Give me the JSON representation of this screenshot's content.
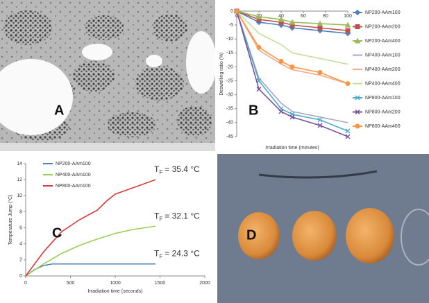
{
  "panels": {
    "a": {
      "label": "A"
    },
    "d": {
      "label": "D"
    }
  },
  "chart_data": [
    {
      "type": "line",
      "panel": "B",
      "x_axis_position": "top",
      "grid": false,
      "x_label": "Irradiation time (minutes)",
      "y_label": "Deswelling ratio (%)",
      "xlim": [
        0,
        100
      ],
      "xticks": [
        0,
        20,
        40,
        60,
        80,
        100
      ],
      "ylim": [
        -45,
        0
      ],
      "yticks": [
        0,
        -5,
        -10,
        -15,
        -20,
        -25,
        -30,
        -35,
        -40,
        -45
      ],
      "series": [
        {
          "name": "NP200-AAm100",
          "color": "#4f81bd",
          "marker": "diamond",
          "x": [
            0,
            20,
            40,
            50,
            75,
            100
          ],
          "values": [
            0,
            -4,
            -5,
            -6,
            -7,
            -8
          ]
        },
        {
          "name": "NP200-AAm200",
          "color": "#c0504d",
          "marker": "square",
          "x": [
            0,
            20,
            40,
            50,
            75,
            100
          ],
          "values": [
            0,
            -3,
            -4,
            -5,
            -6,
            -7
          ]
        },
        {
          "name": "NP200-AAm400",
          "color": "#9bbb59",
          "marker": "triangle",
          "x": [
            0,
            20,
            40,
            50,
            75,
            100
          ],
          "values": [
            0,
            -2,
            -3,
            -4,
            -4.5,
            -5
          ]
        },
        {
          "name": "NP400-AAm100",
          "color": "#a6a6c8",
          "marker": "none",
          "x": [
            0,
            20,
            40,
            50,
            75,
            100
          ],
          "values": [
            0,
            -24,
            -33,
            -36,
            -38,
            -40
          ]
        },
        {
          "name": "NP400-AAm200",
          "color": "#f2a98a",
          "marker": "none",
          "x": [
            0,
            20,
            40,
            50,
            75,
            100
          ],
          "values": [
            0,
            -14,
            -19,
            -21,
            -23,
            -26
          ]
        },
        {
          "name": "NP400-AAm400",
          "color": "#c3e09a",
          "marker": "none",
          "x": [
            0,
            20,
            40,
            50,
            75,
            100
          ],
          "values": [
            0,
            -8,
            -12,
            -15,
            -17,
            -19
          ]
        },
        {
          "name": "NP800-AAm100",
          "color": "#4bacc6",
          "marker": "x",
          "x": [
            0,
            20,
            40,
            50,
            75,
            100
          ],
          "values": [
            0,
            -25,
            -35,
            -37,
            -39,
            -43
          ]
        },
        {
          "name": "NP800-AAm200",
          "color": "#7e4fa0",
          "marker": "x",
          "x": [
            0,
            20,
            40,
            50,
            75,
            100
          ],
          "values": [
            0,
            -28,
            -36,
            -38,
            -41,
            -45
          ]
        },
        {
          "name": "NP800-AAm400",
          "color": "#f79646",
          "marker": "circle",
          "x": [
            0,
            20,
            40,
            50,
            75,
            100
          ],
          "values": [
            0,
            -13,
            -18,
            -20,
            -22,
            -26
          ]
        }
      ]
    },
    {
      "type": "line",
      "panel": "C",
      "x_axis_position": "bottom",
      "grid": false,
      "x_label": "Irradiation time (seconds)",
      "y_label": "Temperature Jump (°C)",
      "xlim": [
        0,
        2000
      ],
      "xticks": [
        0,
        500,
        1000,
        1500,
        2000
      ],
      "ylim": [
        0,
        14
      ],
      "yticks": [
        0,
        2,
        4,
        6,
        8,
        10,
        12,
        14
      ],
      "series": [
        {
          "name": "NP200-AAm100",
          "color": "#4f81bd",
          "marker": "none",
          "x": [
            0,
            100,
            200,
            300,
            400,
            800,
            1200,
            1450
          ],
          "values": [
            0,
            0.8,
            1.3,
            1.5,
            1.5,
            1.5,
            1.5,
            1.5
          ]
        },
        {
          "name": "NP400-AAm100",
          "color": "#9bcf53",
          "marker": "none",
          "x": [
            0,
            200,
            400,
            600,
            800,
            1000,
            1200,
            1450
          ],
          "values": [
            0,
            1.5,
            2.8,
            3.8,
            4.6,
            5.3,
            5.8,
            6.2
          ]
        },
        {
          "name": "NP800-AAm100",
          "color": "#d9383a",
          "marker": "none",
          "x": [
            0,
            200,
            400,
            600,
            800,
            900,
            1000,
            1200,
            1450
          ],
          "values": [
            0,
            3,
            5.5,
            7,
            8.2,
            9.3,
            10.2,
            11,
            12
          ]
        }
      ],
      "annotations": [
        {
          "symbol": "T",
          "subscript": "F",
          "text": "= 35.4 °C",
          "x": 1450,
          "y": 12
        },
        {
          "symbol": "T",
          "subscript": "F",
          "text": "= 32.1 °C",
          "x": 1450,
          "y": 6.2
        },
        {
          "symbol": "T",
          "subscript": "F",
          "text": "= 24.3 °C",
          "x": 1450,
          "y": 1.5
        }
      ]
    }
  ]
}
